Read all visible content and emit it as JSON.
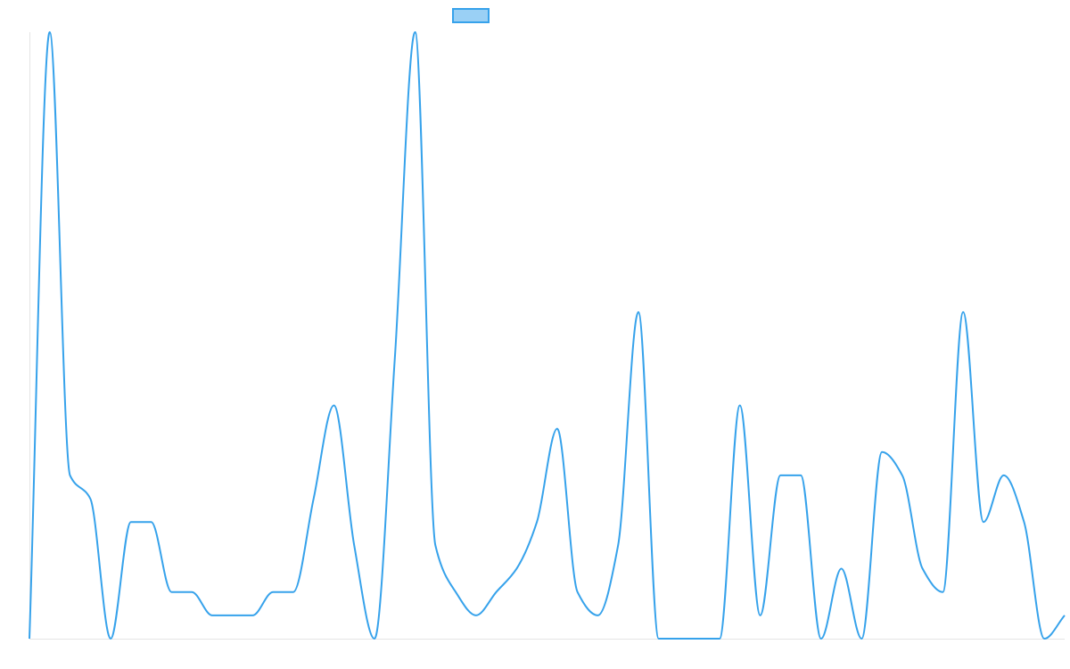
{
  "chart_data": {
    "type": "line",
    "categories": [
      null,
      null,
      null,
      null,
      null,
      null,
      null,
      null,
      null,
      null,
      null,
      null,
      null,
      null,
      null,
      null,
      null,
      null,
      null,
      null,
      null,
      null,
      null,
      null,
      null,
      null,
      null,
      null,
      null,
      null,
      null,
      null,
      null,
      null,
      null,
      null,
      null,
      null,
      null,
      null,
      null,
      null,
      null,
      null,
      null,
      null,
      null,
      null,
      null,
      null,
      null,
      null
    ],
    "series": [
      {
        "color": "#36a2eb",
        "fill": "rgba(54,162,235,0.5)",
        "values": [
          0,
          26,
          7,
          6,
          0,
          5,
          5,
          2,
          2,
          1,
          1,
          1,
          2,
          2,
          6,
          10,
          4,
          0,
          12,
          26,
          4,
          2,
          1,
          2,
          3,
          5,
          9,
          2,
          1,
          4,
          14,
          0,
          0,
          0,
          0,
          10,
          1,
          7,
          7,
          0,
          3,
          0,
          8,
          7,
          3,
          2,
          14,
          5,
          7,
          5,
          0,
          1
        ]
      }
    ],
    "ylim": [
      0,
      26
    ]
  }
}
